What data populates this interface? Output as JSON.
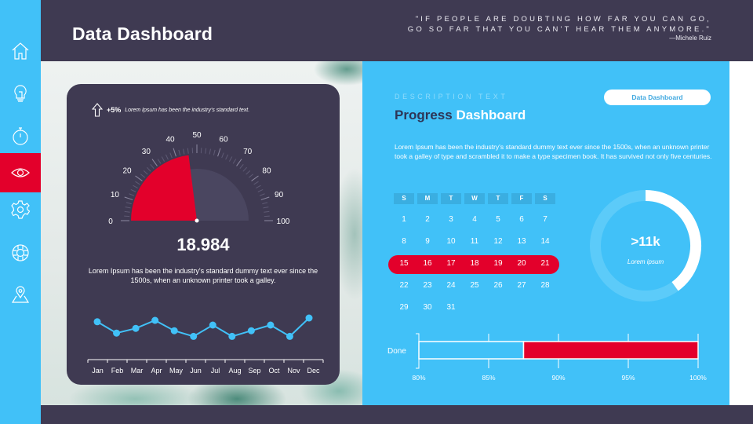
{
  "header": {
    "title": "Data Dashboard",
    "quote_line1": "\"IF PEOPLE ARE DOUBTING HOW FAR YOU CAN GO,",
    "quote_line2": "GO SO FAR THAT YOU CAN'T HEAR THEM ANYMORE.\"",
    "quote_author": "—Michele Ruiz"
  },
  "sidebar": {
    "items": [
      {
        "name": "home",
        "icon": "home-icon",
        "active": false
      },
      {
        "name": "ideas",
        "icon": "lightbulb-icon",
        "active": false
      },
      {
        "name": "timer",
        "icon": "stopwatch-icon",
        "active": false
      },
      {
        "name": "view",
        "icon": "eye-icon",
        "active": true
      },
      {
        "name": "settings",
        "icon": "gear-icon",
        "active": false
      },
      {
        "name": "support",
        "icon": "lifebuoy-icon",
        "active": false
      },
      {
        "name": "location",
        "icon": "map-pin-icon",
        "active": false
      }
    ]
  },
  "left_card": {
    "kpi_change": "+5%",
    "kpi_text": "Lorem Ipsum has been the industry's standard text.",
    "gauge_value": "18.984",
    "gauge_desc": "Lorem Ipsum has been the industry's standard dummy text ever since the 1500s, when an unknown printer took a galley."
  },
  "right_panel": {
    "desc_label": "DESCRIPTION TEXT",
    "title_part1": "Progress",
    "title_part2": "Dashboard",
    "pill_button": "Data Dashboard",
    "description": "Lorem Ipsum has been the industry's standard dummy text ever since the 1500s, when an unknown printer took a galley of type and scrambled it to make a type specimen book. It has survived not only five centuries.",
    "calendar": {
      "weekdays": [
        "S",
        "M",
        "T",
        "W",
        "T",
        "F",
        "S"
      ],
      "days": [
        "1",
        "2",
        "3",
        "4",
        "5",
        "6",
        "7",
        "8",
        "9",
        "10",
        "11",
        "12",
        "13",
        "14",
        "15",
        "16",
        "17",
        "18",
        "19",
        "20",
        "21",
        "22",
        "23",
        "24",
        "25",
        "26",
        "27",
        "28",
        "29",
        "30",
        "31"
      ],
      "highlighted_week": [
        "15",
        "16",
        "17",
        "18",
        "19",
        "20",
        "21"
      ]
    },
    "donut": {
      "value": ">11k",
      "label": "Lorem ipsum",
      "percent": 40
    },
    "bar": {
      "label": "Done",
      "ticks": [
        "80%",
        "85%",
        "90%",
        "95%",
        "100%"
      ]
    }
  },
  "colors": {
    "dark": "#3F3A52",
    "blue": "#41C1F8",
    "red": "#E3002B",
    "navy_text": "#2D3556",
    "white": "#FFFFFF"
  },
  "chart_data": [
    {
      "type": "gauge",
      "title": "",
      "min": 0,
      "max": 100,
      "ticks": [
        0,
        10,
        20,
        30,
        40,
        50,
        60,
        70,
        80,
        90,
        100
      ],
      "value": 46,
      "display_value": "18.984"
    },
    {
      "type": "line",
      "categories": [
        "Jan",
        "Feb",
        "Mar",
        "Apr",
        "May",
        "Jun",
        "Jul",
        "Aug",
        "Sep",
        "Oct",
        "Nov",
        "Dec"
      ],
      "values": [
        62,
        38,
        48,
        65,
        43,
        31,
        55,
        31,
        43,
        55,
        31,
        70
      ],
      "ylim": [
        0,
        100
      ],
      "grid": false
    },
    {
      "type": "bar",
      "orientation": "horizontal",
      "categories": [
        "Done"
      ],
      "series": [
        {
          "name": "completed",
          "values": [
            87.5
          ]
        },
        {
          "name": "remaining",
          "values": [
            12.5
          ]
        }
      ],
      "xlim": [
        80,
        100
      ],
      "xticks": [
        "80%",
        "85%",
        "90%",
        "95%",
        "100%"
      ]
    },
    {
      "type": "pie",
      "style": "donut",
      "values": [
        40,
        60
      ],
      "center_text": ">11k",
      "center_subtext": "Lorem ipsum"
    }
  ]
}
